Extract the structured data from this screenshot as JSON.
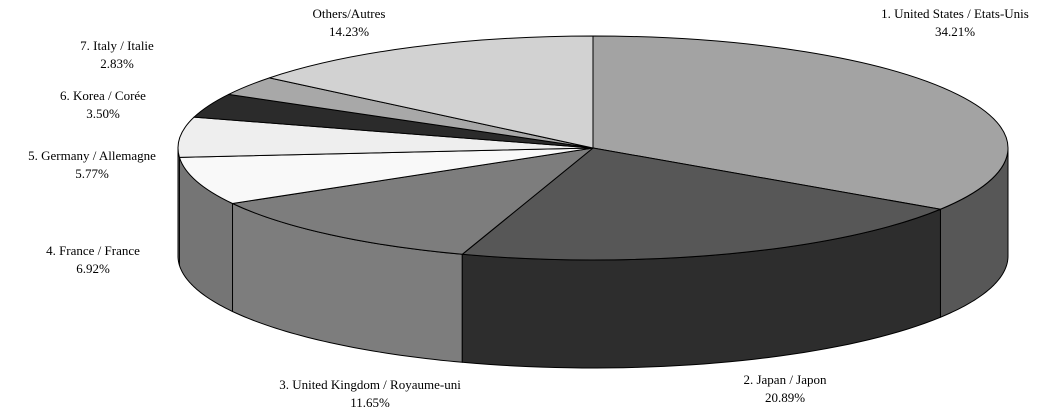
{
  "chart_data": {
    "type": "pie",
    "three_d": true,
    "title": "",
    "slices": [
      {
        "label": "1. United States / Etats-Unis",
        "value": 34.21,
        "value_label": "34.21%",
        "color": "#a3a3a3",
        "side_color": "#575757"
      },
      {
        "label": "2. Japan / Japon",
        "value": 20.89,
        "value_label": "20.89%",
        "color": "#575757",
        "side_color": "#2d2d2d"
      },
      {
        "label": "3. United Kingdom / Royaume-uni",
        "value": 11.65,
        "value_label": "11.65%",
        "color": "#7d7d7d",
        "side_color": "#7d7d7d"
      },
      {
        "label": "4. France / France",
        "value": 6.92,
        "value_label": "6.92%",
        "color": "#f9f9f9",
        "side_color": "#757575"
      },
      {
        "label": "5. Germany / Allemagne",
        "value": 5.77,
        "value_label": "5.77%",
        "color": "#eeeeee",
        "side_color": "#7a7a7a"
      },
      {
        "label": "6. Korea / Corée",
        "value": 3.5,
        "value_label": "3.50%",
        "color": "#2b2b2b",
        "side_color": "#2b2b2b"
      },
      {
        "label": "7. Italy / Italie",
        "value": 2.83,
        "value_label": "2.83%",
        "color": "#a8a8a8",
        "side_color": "#888888"
      },
      {
        "label": "Others/Autres",
        "value": 14.23,
        "value_label": "14.23%",
        "color": "#d2d2d2",
        "side_color": "#aaaaaa"
      }
    ]
  }
}
